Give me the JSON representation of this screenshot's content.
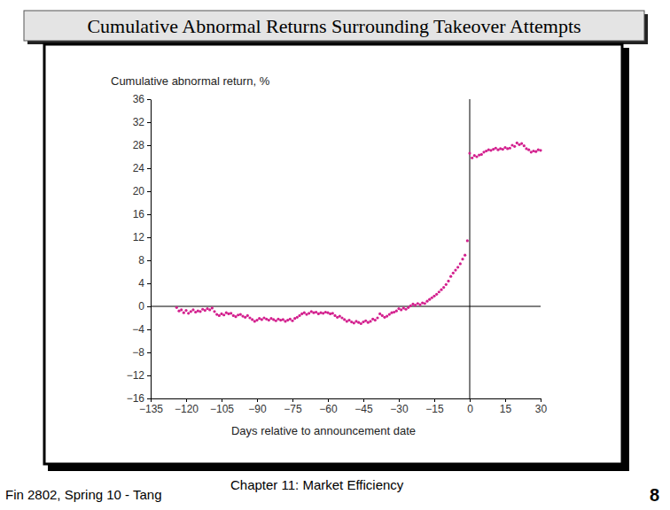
{
  "chart_data": {
    "type": "scatter",
    "title": "Cumulative Abnormal Returns Surrounding Takeover Attempts",
    "y_label": "Cumulative abnormal return, %",
    "x_label": "Days relative to announcement date",
    "color": "#d3208e",
    "marker": "circle",
    "grid": false,
    "xlim": [
      -135,
      30
    ],
    "ylim": [
      -16,
      36
    ],
    "xticks": [
      {
        "value": -135,
        "label": "−135"
      },
      {
        "value": -120,
        "label": "−120"
      },
      {
        "value": -105,
        "label": "−105"
      },
      {
        "value": -90,
        "label": "−90"
      },
      {
        "value": -75,
        "label": "−75"
      },
      {
        "value": -60,
        "label": "−60"
      },
      {
        "value": -45,
        "label": "−45"
      },
      {
        "value": -30,
        "label": "−30"
      },
      {
        "value": -15,
        "label": "−15"
      },
      0,
      15,
      30
    ],
    "yticks": [
      {
        "value": -16,
        "label": "−16"
      },
      {
        "value": -12,
        "label": "−12"
      },
      {
        "value": -8,
        "label": "−8"
      },
      {
        "value": -4,
        "label": "−4"
      },
      0,
      4,
      8,
      12,
      16,
      20,
      24,
      28,
      32,
      36
    ],
    "vline": 0,
    "hline": 0,
    "x": [
      -124,
      -123,
      -122,
      -121,
      -120,
      -119,
      -118,
      -117,
      -116,
      -115,
      -114,
      -113,
      -112,
      -111,
      -110,
      -109,
      -108,
      -107,
      -106,
      -105,
      -104,
      -103,
      -102,
      -101,
      -100,
      -99,
      -98,
      -97,
      -96,
      -95,
      -94,
      -93,
      -92,
      -91,
      -90,
      -89,
      -88,
      -87,
      -86,
      -85,
      -84,
      -83,
      -82,
      -81,
      -80,
      -79,
      -78,
      -77,
      -76,
      -75,
      -74,
      -73,
      -72,
      -71,
      -70,
      -69,
      -68,
      -67,
      -66,
      -65,
      -64,
      -63,
      -62,
      -61,
      -60,
      -59,
      -58,
      -57,
      -56,
      -55,
      -54,
      -53,
      -52,
      -51,
      -50,
      -49,
      -48,
      -47,
      -46,
      -45,
      -44,
      -43,
      -42,
      -41,
      -40,
      -39,
      -38,
      -37,
      -36,
      -35,
      -34,
      -33,
      -32,
      -31,
      -30,
      -29,
      -28,
      -27,
      -26,
      -25,
      -24,
      -23,
      -22,
      -21,
      -20,
      -19,
      -18,
      -17,
      -16,
      -15,
      -14,
      -13,
      -12,
      -11,
      -10,
      -9,
      -8,
      -7,
      -6,
      -5,
      -4,
      -3,
      -2,
      -1,
      0,
      1,
      2,
      3,
      4,
      5,
      6,
      7,
      8,
      9,
      10,
      11,
      12,
      13,
      14,
      15,
      16,
      17,
      18,
      19,
      20,
      21,
      22,
      23,
      24,
      25,
      26,
      27,
      28,
      29,
      30
    ],
    "values": [
      -0.2,
      -0.8,
      -0.6,
      -1.1,
      -0.7,
      -1.2,
      -0.9,
      -0.6,
      -1.0,
      -0.8,
      -0.9,
      -0.5,
      -0.7,
      -0.4,
      -0.6,
      -0.3,
      -0.9,
      -1.4,
      -1.6,
      -1.3,
      -1.5,
      -1.1,
      -1.3,
      -1.2,
      -1.6,
      -1.8,
      -1.5,
      -1.4,
      -1.7,
      -1.9,
      -1.6,
      -2.0,
      -2.3,
      -2.6,
      -2.4,
      -2.1,
      -2.3,
      -2.0,
      -2.2,
      -2.4,
      -2.1,
      -2.3,
      -2.5,
      -2.2,
      -2.4,
      -2.3,
      -2.6,
      -2.4,
      -2.2,
      -2.5,
      -2.1,
      -1.9,
      -1.6,
      -1.3,
      -1.1,
      -1.4,
      -1.2,
      -0.9,
      -1.1,
      -1.0,
      -1.3,
      -1.1,
      -1.2,
      -1.0,
      -1.1,
      -1.3,
      -1.2,
      -1.6,
      -1.9,
      -1.7,
      -2.0,
      -2.3,
      -2.6,
      -2.4,
      -2.7,
      -2.9,
      -2.6,
      -2.8,
      -3.0,
      -2.7,
      -2.5,
      -2.8,
      -2.6,
      -2.2,
      -2.4,
      -2.0,
      -1.3,
      -1.6,
      -1.9,
      -1.7,
      -1.4,
      -1.1,
      -1.0,
      -0.8,
      -0.4,
      -0.6,
      -0.3,
      -0.5,
      -0.2,
      0.1,
      0.4,
      0.2,
      0.5,
      0.3,
      0.6,
      0.5,
      0.9,
      1.2,
      1.5,
      1.8,
      2.1,
      2.5,
      2.9,
      3.3,
      3.8,
      4.4,
      5.2,
      5.8,
      6.3,
      6.8,
      7.4,
      8.2,
      8.9,
      11.4,
      26.6,
      25.8,
      26.2,
      26.0,
      26.3,
      26.4,
      26.8,
      27.0,
      27.2,
      27.1,
      27.3,
      27.5,
      27.2,
      27.4,
      27.3,
      27.6,
      27.4,
      27.5,
      28.0,
      27.8,
      28.4,
      28.1,
      28.3,
      27.9,
      27.4,
      27.2,
      26.8,
      27.0,
      26.9,
      27.2,
      27.1
    ]
  },
  "slide": {
    "footer_left": "Fin 2802, Spring 10 - Tang",
    "footer_center": "Chapter 11: Market Efficiency",
    "page_number": 8
  }
}
